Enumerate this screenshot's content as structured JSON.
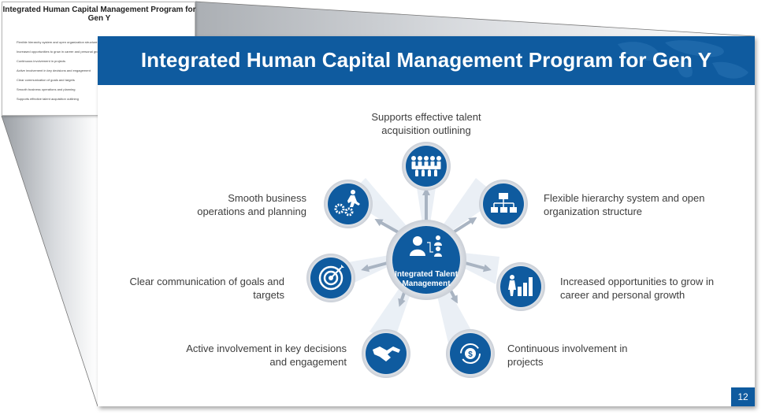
{
  "notes_page": {
    "title": "Integrated Human Capital Management Program for Gen Y",
    "items": [
      "Flexible hierarchy system and open organization structure",
      "Increased opportunities to grow in career and personal growth",
      "Continuous involvement in projects",
      "Active involvement in key decisions and engagement",
      "Clear communication of goals and targets",
      "Smooth business operations and planning",
      "Supports effective talent acquisition outlining"
    ]
  },
  "slide": {
    "title": "Integrated Human Capital Management Program for Gen Y",
    "center_label": "Integrated Talent Management",
    "page_number": "12",
    "colors": {
      "primary": "#0f5b9f",
      "ring": "#d9dde3",
      "arrow": "#a9b4c2",
      "text": "#3d3d3d"
    },
    "nodes": [
      {
        "label": "Supports effective talent acquisition outlining",
        "icon": "team-group-icon"
      },
      {
        "label": "Flexible hierarchy system and open organization structure",
        "icon": "org-chart-icon"
      },
      {
        "label": "Increased opportunities to grow in career and personal growth",
        "icon": "career-growth-icon"
      },
      {
        "label": "Continuous involvement in projects",
        "icon": "dollar-cycle-icon"
      },
      {
        "label": "Active involvement in key decisions and engagement",
        "icon": "handshake-icon"
      },
      {
        "label": "Clear communication of goals and targets",
        "icon": "target-icon"
      },
      {
        "label": "Smooth business operations and planning",
        "icon": "gears-person-icon"
      }
    ]
  }
}
